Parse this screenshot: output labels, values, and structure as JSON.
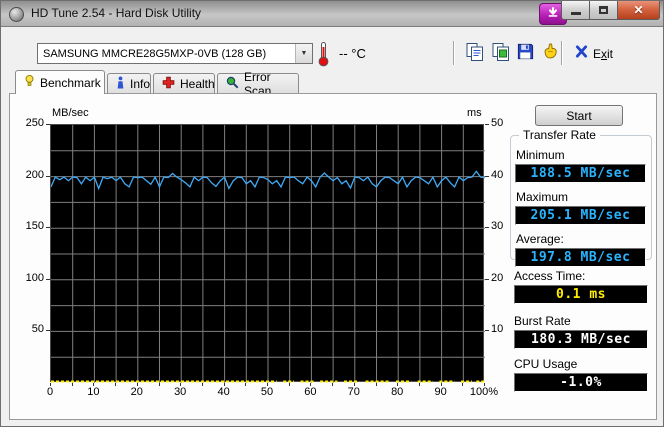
{
  "window": {
    "title": "HD Tune 2.54 - Hard Disk Utility"
  },
  "titlebar": {
    "icons": [
      "hd-tune-app-icon",
      "screen-capture-download-icon",
      "minimize-icon",
      "maximize-icon",
      "close-icon"
    ]
  },
  "toolbar": {
    "drive_select": {
      "value": "SAMSUNG MMCRE28G5MXP-0VB (128 GB)"
    },
    "temperature": {
      "value": "--",
      "unit": "°C"
    },
    "icons": [
      "thermometer-icon",
      "copy-text-icon",
      "copy-image-icon",
      "save-screenshot-icon",
      "options-icon",
      "exit-x-icon"
    ],
    "exit_pre": "E",
    "exit_accel": "x",
    "exit_post": "it"
  },
  "tabs": [
    {
      "label": "Benchmark",
      "icon": "lightbulb-icon",
      "active": true
    },
    {
      "label": "Info",
      "icon": "info-person-icon",
      "active": false
    },
    {
      "label": "Health",
      "icon": "red-cross-icon",
      "active": false
    },
    {
      "label": "Error Scan",
      "icon": "magnifier-icon",
      "active": false
    }
  ],
  "panel": {
    "start_button": "Start",
    "transfer_rate": {
      "legend": "Transfer Rate",
      "minimum_label": "Minimum",
      "minimum_value": "188.5 MB/sec",
      "maximum_label": "Maximum",
      "maximum_value": "205.1 MB/sec",
      "average_label": "Average:",
      "average_value": "197.8 MB/sec"
    },
    "access_time": {
      "label": "Access Time:",
      "value": "0.1 ms"
    },
    "burst_rate": {
      "label": "Burst Rate",
      "value": "180.3 MB/sec"
    },
    "cpu_usage": {
      "label": "CPU Usage",
      "value": "-1.0%"
    }
  },
  "colors": {
    "lcd_cyan": "#2ab4ff",
    "lcd_yellow": "#ffee00",
    "lcd_white": "#ffffff",
    "transfer_line": "#3fa9f5",
    "access_dots": "#ffee00",
    "plot_bg": "#000000",
    "grid": "#7f7f7f"
  },
  "chart_data": {
    "type": "line",
    "title": "",
    "left_axis": {
      "label": "MB/sec",
      "range": [
        0,
        250
      ],
      "ticks": [
        250,
        200,
        150,
        100,
        50
      ],
      "gridline_step": 25
    },
    "right_axis": {
      "label": "ms",
      "range": [
        0,
        50
      ],
      "ticks": [
        50,
        40,
        30,
        20,
        10
      ]
    },
    "x_axis": {
      "range": [
        0,
        100
      ],
      "tick_labels": [
        "0",
        "10",
        "20",
        "30",
        "40",
        "50",
        "60",
        "70",
        "80",
        "90",
        "100%"
      ],
      "gridline_step": 5
    },
    "grid": true,
    "legend_position": "none",
    "series": [
      {
        "name": "transfer_rate_mb_per_sec",
        "color": "#3fa9f5",
        "x_step_percent": 1,
        "values": [
          190,
          199.5,
          197,
          199.5,
          196,
          199.5,
          199,
          193,
          199.5,
          196,
          199.5,
          188.5,
          199.5,
          198,
          199.5,
          196,
          199.5,
          193,
          190,
          199.5,
          199,
          199.5,
          196,
          192.5,
          199.5,
          190,
          199.5,
          199,
          203,
          199.5,
          197,
          194,
          190,
          199.5,
          196,
          199.5,
          199,
          194,
          190.5,
          196,
          199.5,
          188.5,
          196,
          199.5,
          199,
          193,
          196,
          190,
          199.5,
          199,
          197,
          193,
          196,
          190,
          199.5,
          199,
          199.5,
          196,
          193,
          199.5,
          196,
          190,
          199.5,
          203.5,
          199.5,
          196,
          199,
          193,
          196,
          189,
          199.5,
          199,
          196,
          199.5,
          193,
          190,
          196,
          199.5,
          199,
          196,
          193,
          199.5,
          190,
          196,
          199.5,
          199,
          196,
          193,
          199.5,
          190,
          196,
          199.5,
          194,
          190,
          199.5,
          196,
          199,
          199.5,
          205.1,
          199.5,
          199
        ]
      },
      {
        "name": "access_time_ms",
        "color": "#ffee00",
        "value_ms": 0.1,
        "segments_percent": [
          [
            0,
            52
          ],
          [
            53.5,
            56
          ],
          [
            57.5,
            60.5
          ],
          [
            62,
            66
          ],
          [
            67.5,
            71
          ],
          [
            72.5,
            78
          ],
          [
            79.5,
            83
          ],
          [
            84.5,
            88
          ],
          [
            89.5,
            93
          ],
          [
            94.5,
            97
          ],
          [
            98,
            100
          ]
        ]
      }
    ],
    "summary": {
      "minimum": 188.5,
      "maximum": 205.1,
      "average": 197.8,
      "access_time_ms": 0.1,
      "burst_rate": 180.3,
      "cpu_usage_percent": -1.0
    }
  }
}
